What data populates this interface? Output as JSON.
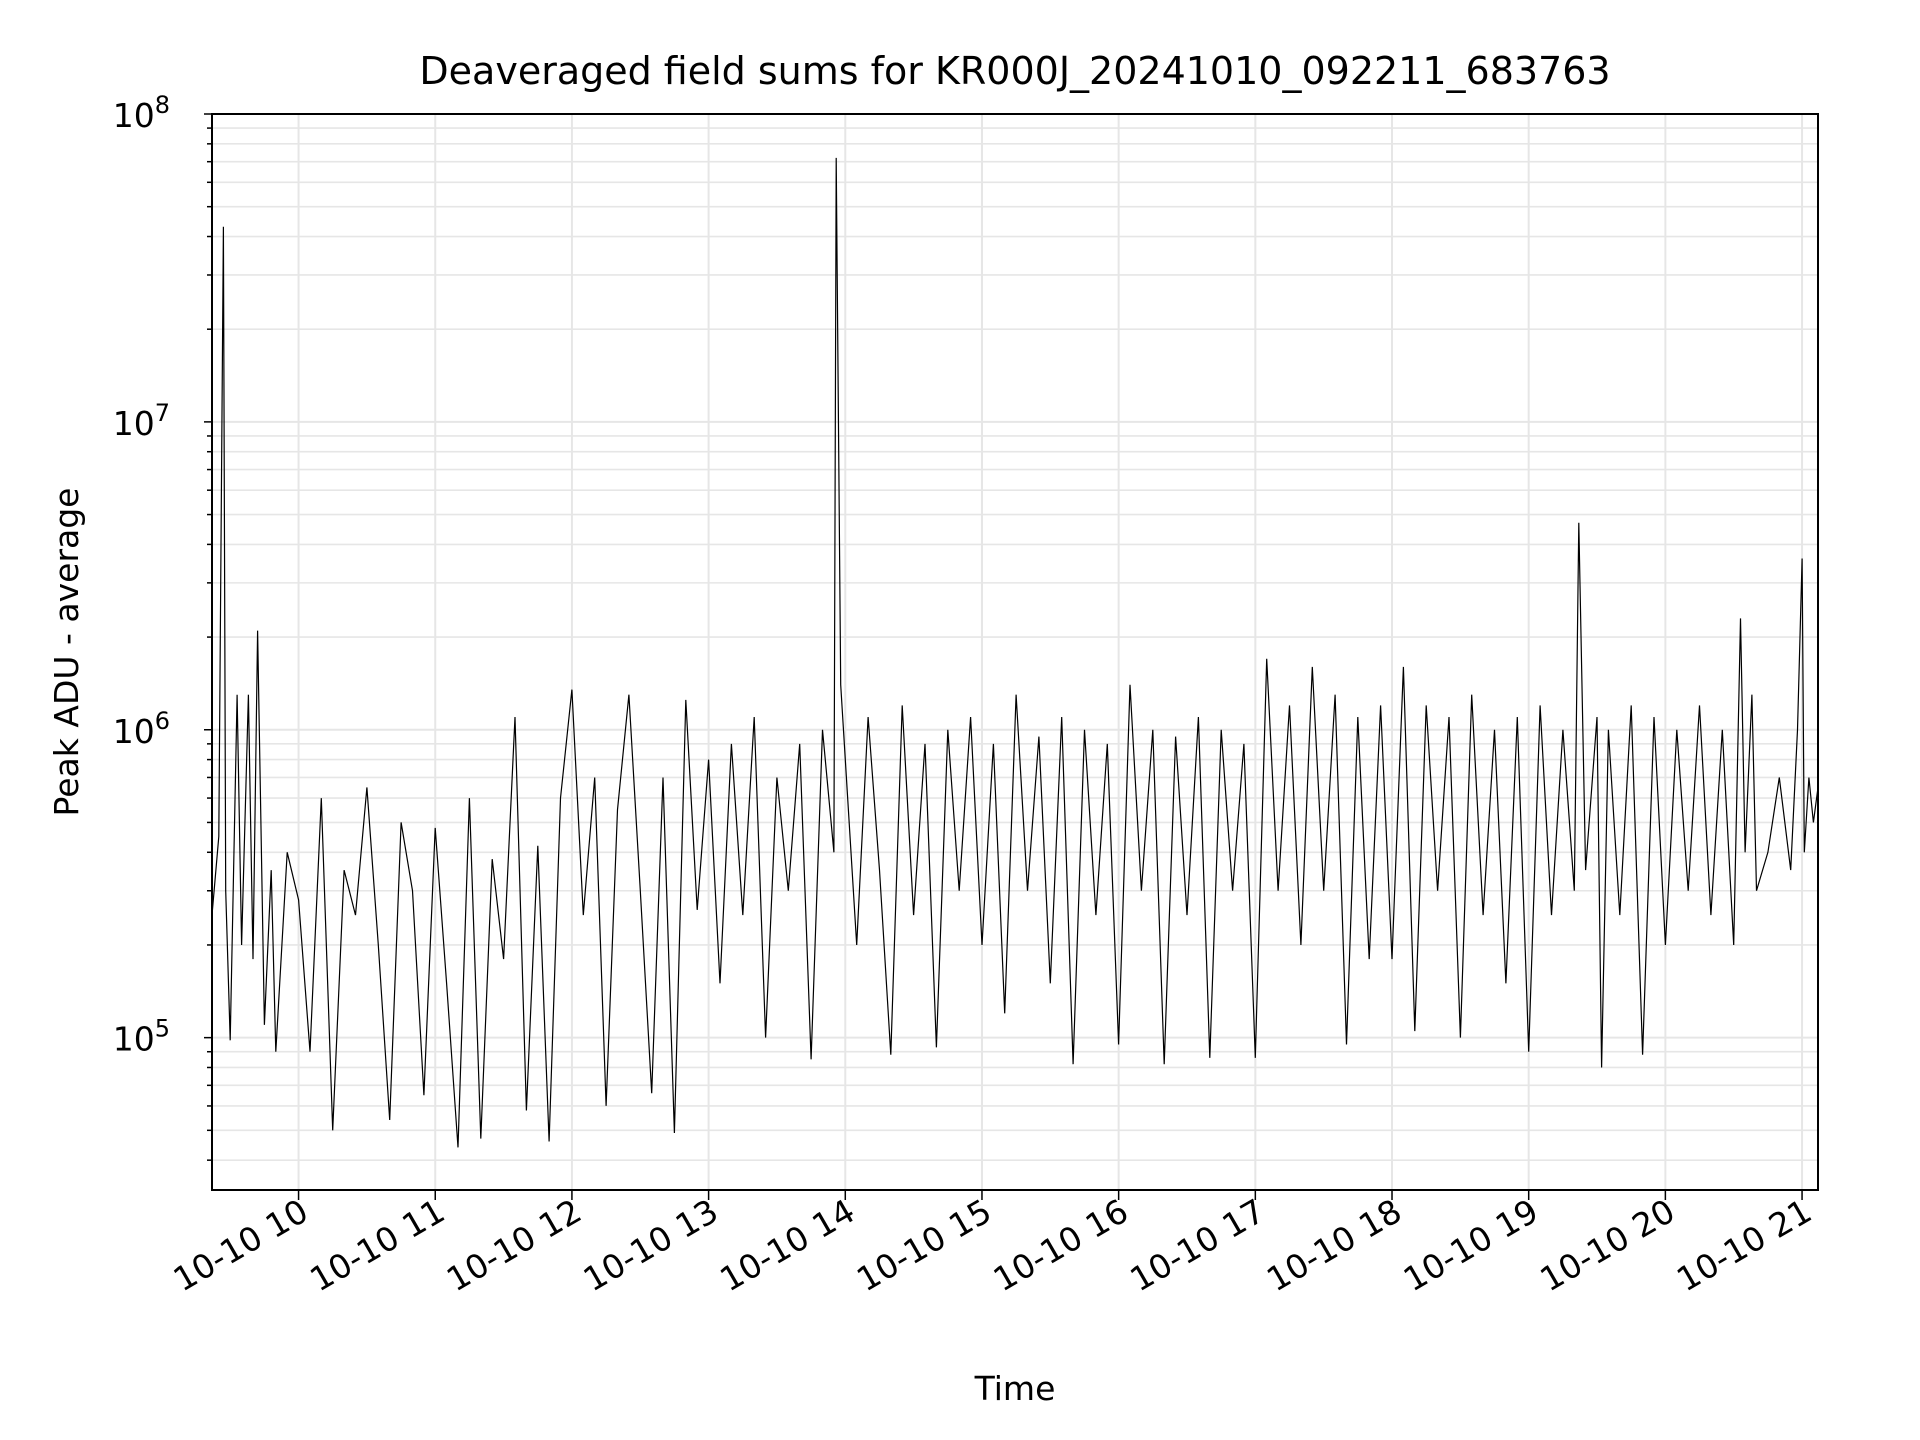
{
  "chart_data": {
    "type": "line",
    "title": "Deaveraged field sums for KR000J_20241010_092211_683763",
    "xlabel": "Time",
    "ylabel": "Peak ADU - average",
    "yscale": "log",
    "ylim": [
      32000,
      100000000
    ],
    "xlim": [
      "2024-10-10 09:22",
      "2024-10-10 21:07"
    ],
    "grid": true,
    "line_color": "#000000",
    "grid_color": "#e6e6e6",
    "x_ticks": [
      {
        "value": "2024-10-10 10:00",
        "label": "10-10 10"
      },
      {
        "value": "2024-10-10 11:00",
        "label": "10-10 11"
      },
      {
        "value": "2024-10-10 12:00",
        "label": "10-10 12"
      },
      {
        "value": "2024-10-10 13:00",
        "label": "10-10 13"
      },
      {
        "value": "2024-10-10 14:00",
        "label": "10-10 14"
      },
      {
        "value": "2024-10-10 15:00",
        "label": "10-10 15"
      },
      {
        "value": "2024-10-10 16:00",
        "label": "10-10 16"
      },
      {
        "value": "2024-10-10 17:00",
        "label": "10-10 17"
      },
      {
        "value": "2024-10-10 18:00",
        "label": "10-10 18"
      },
      {
        "value": "2024-10-10 19:00",
        "label": "10-10 19"
      },
      {
        "value": "2024-10-10 20:00",
        "label": "10-10 20"
      },
      {
        "value": "2024-10-10 21:00",
        "label": "10-10 21"
      }
    ],
    "y_ticks": [
      {
        "value": 100000,
        "base": "10",
        "exp": "5"
      },
      {
        "value": 1000000,
        "base": "10",
        "exp": "6"
      },
      {
        "value": 10000000,
        "base": "10",
        "exp": "7"
      },
      {
        "value": 100000000,
        "base": "10",
        "exp": "8"
      }
    ],
    "series": [
      {
        "points": [
          [
            "2024-10-10 09:22",
            250000
          ],
          [
            "2024-10-10 09:25",
            450000
          ],
          [
            "2024-10-10 09:27",
            43000000
          ],
          [
            "2024-10-10 09:28",
            300000
          ],
          [
            "2024-10-10 09:30",
            98000
          ],
          [
            "2024-10-10 09:33",
            1300000
          ],
          [
            "2024-10-10 09:35",
            200000
          ],
          [
            "2024-10-10 09:38",
            1300000
          ],
          [
            "2024-10-10 09:40",
            180000
          ],
          [
            "2024-10-10 09:42",
            2100000
          ],
          [
            "2024-10-10 09:45",
            110000
          ],
          [
            "2024-10-10 09:48",
            350000
          ],
          [
            "2024-10-10 09:50",
            90000
          ],
          [
            "2024-10-10 09:55",
            400000
          ],
          [
            "2024-10-10 10:00",
            280000
          ],
          [
            "2024-10-10 10:05",
            90000
          ],
          [
            "2024-10-10 10:10",
            600000
          ],
          [
            "2024-10-10 10:15",
            50000
          ],
          [
            "2024-10-10 10:20",
            350000
          ],
          [
            "2024-10-10 10:25",
            250000
          ],
          [
            "2024-10-10 10:30",
            650000
          ],
          [
            "2024-10-10 10:35",
            200000
          ],
          [
            "2024-10-10 10:40",
            54000
          ],
          [
            "2024-10-10 10:45",
            500000
          ],
          [
            "2024-10-10 10:50",
            300000
          ],
          [
            "2024-10-10 10:55",
            65000
          ],
          [
            "2024-10-10 11:00",
            480000
          ],
          [
            "2024-10-10 11:05",
            150000
          ],
          [
            "2024-10-10 11:10",
            44000
          ],
          [
            "2024-10-10 11:15",
            600000
          ],
          [
            "2024-10-10 11:20",
            47000
          ],
          [
            "2024-10-10 11:25",
            380000
          ],
          [
            "2024-10-10 11:30",
            180000
          ],
          [
            "2024-10-10 11:35",
            1100000
          ],
          [
            "2024-10-10 11:40",
            58000
          ],
          [
            "2024-10-10 11:45",
            420000
          ],
          [
            "2024-10-10 11:50",
            46000
          ],
          [
            "2024-10-10 11:55",
            600000
          ],
          [
            "2024-10-10 12:00",
            1350000
          ],
          [
            "2024-10-10 12:05",
            250000
          ],
          [
            "2024-10-10 12:10",
            700000
          ],
          [
            "2024-10-10 12:15",
            60000
          ],
          [
            "2024-10-10 12:20",
            550000
          ],
          [
            "2024-10-10 12:25",
            1300000
          ],
          [
            "2024-10-10 12:30",
            300000
          ],
          [
            "2024-10-10 12:35",
            66000
          ],
          [
            "2024-10-10 12:40",
            700000
          ],
          [
            "2024-10-10 12:45",
            49000
          ],
          [
            "2024-10-10 12:50",
            1250000
          ],
          [
            "2024-10-10 12:55",
            260000
          ],
          [
            "2024-10-10 13:00",
            800000
          ],
          [
            "2024-10-10 13:05",
            150000
          ],
          [
            "2024-10-10 13:10",
            900000
          ],
          [
            "2024-10-10 13:15",
            250000
          ],
          [
            "2024-10-10 13:20",
            1100000
          ],
          [
            "2024-10-10 13:25",
            100000
          ],
          [
            "2024-10-10 13:30",
            700000
          ],
          [
            "2024-10-10 13:35",
            300000
          ],
          [
            "2024-10-10 13:40",
            900000
          ],
          [
            "2024-10-10 13:45",
            85000
          ],
          [
            "2024-10-10 13:50",
            1000000
          ],
          [
            "2024-10-10 13:55",
            400000
          ],
          [
            "2024-10-10 13:56",
            72000000
          ],
          [
            "2024-10-10 13:58",
            1400000
          ],
          [
            "2024-10-10 14:05",
            200000
          ],
          [
            "2024-10-10 14:10",
            1100000
          ],
          [
            "2024-10-10 14:15",
            350000
          ],
          [
            "2024-10-10 14:20",
            88000
          ],
          [
            "2024-10-10 14:25",
            1200000
          ],
          [
            "2024-10-10 14:30",
            250000
          ],
          [
            "2024-10-10 14:35",
            900000
          ],
          [
            "2024-10-10 14:40",
            93000
          ],
          [
            "2024-10-10 14:45",
            1000000
          ],
          [
            "2024-10-10 14:50",
            300000
          ],
          [
            "2024-10-10 14:55",
            1100000
          ],
          [
            "2024-10-10 15:00",
            200000
          ],
          [
            "2024-10-10 15:05",
            900000
          ],
          [
            "2024-10-10 15:10",
            120000
          ],
          [
            "2024-10-10 15:15",
            1300000
          ],
          [
            "2024-10-10 15:20",
            300000
          ],
          [
            "2024-10-10 15:25",
            950000
          ],
          [
            "2024-10-10 15:30",
            150000
          ],
          [
            "2024-10-10 15:35",
            1100000
          ],
          [
            "2024-10-10 15:40",
            82000
          ],
          [
            "2024-10-10 15:45",
            1000000
          ],
          [
            "2024-10-10 15:50",
            250000
          ],
          [
            "2024-10-10 15:55",
            900000
          ],
          [
            "2024-10-10 16:00",
            95000
          ],
          [
            "2024-10-10 16:05",
            1400000
          ],
          [
            "2024-10-10 16:10",
            300000
          ],
          [
            "2024-10-10 16:15",
            1000000
          ],
          [
            "2024-10-10 16:20",
            82000
          ],
          [
            "2024-10-10 16:25",
            950000
          ],
          [
            "2024-10-10 16:30",
            250000
          ],
          [
            "2024-10-10 16:35",
            1100000
          ],
          [
            "2024-10-10 16:40",
            86000
          ],
          [
            "2024-10-10 16:45",
            1000000
          ],
          [
            "2024-10-10 16:50",
            300000
          ],
          [
            "2024-10-10 16:55",
            900000
          ],
          [
            "2024-10-10 17:00",
            86000
          ],
          [
            "2024-10-10 17:05",
            1700000
          ],
          [
            "2024-10-10 17:10",
            300000
          ],
          [
            "2024-10-10 17:15",
            1200000
          ],
          [
            "2024-10-10 17:20",
            200000
          ],
          [
            "2024-10-10 17:25",
            1600000
          ],
          [
            "2024-10-10 17:30",
            300000
          ],
          [
            "2024-10-10 17:35",
            1300000
          ],
          [
            "2024-10-10 17:40",
            95000
          ],
          [
            "2024-10-10 17:45",
            1100000
          ],
          [
            "2024-10-10 17:50",
            180000
          ],
          [
            "2024-10-10 17:55",
            1200000
          ],
          [
            "2024-10-10 18:00",
            180000
          ],
          [
            "2024-10-10 18:05",
            1600000
          ],
          [
            "2024-10-10 18:10",
            105000
          ],
          [
            "2024-10-10 18:15",
            1200000
          ],
          [
            "2024-10-10 18:20",
            300000
          ],
          [
            "2024-10-10 18:25",
            1100000
          ],
          [
            "2024-10-10 18:30",
            100000
          ],
          [
            "2024-10-10 18:35",
            1300000
          ],
          [
            "2024-10-10 18:40",
            250000
          ],
          [
            "2024-10-10 18:45",
            1000000
          ],
          [
            "2024-10-10 18:50",
            150000
          ],
          [
            "2024-10-10 18:55",
            1100000
          ],
          [
            "2024-10-10 19:00",
            90000
          ],
          [
            "2024-10-10 19:05",
            1200000
          ],
          [
            "2024-10-10 19:10",
            250000
          ],
          [
            "2024-10-10 19:15",
            1000000
          ],
          [
            "2024-10-10 19:20",
            300000
          ],
          [
            "2024-10-10 19:22",
            4700000
          ],
          [
            "2024-10-10 19:25",
            350000
          ],
          [
            "2024-10-10 19:30",
            1100000
          ],
          [
            "2024-10-10 19:32",
            80000
          ],
          [
            "2024-10-10 19:35",
            1000000
          ],
          [
            "2024-10-10 19:40",
            250000
          ],
          [
            "2024-10-10 19:45",
            1200000
          ],
          [
            "2024-10-10 19:50",
            88000
          ],
          [
            "2024-10-10 19:55",
            1100000
          ],
          [
            "2024-10-10 20:00",
            200000
          ],
          [
            "2024-10-10 20:05",
            1000000
          ],
          [
            "2024-10-10 20:10",
            300000
          ],
          [
            "2024-10-10 20:15",
            1200000
          ],
          [
            "2024-10-10 20:20",
            250000
          ],
          [
            "2024-10-10 20:25",
            1000000
          ],
          [
            "2024-10-10 20:30",
            200000
          ],
          [
            "2024-10-10 20:33",
            2300000
          ],
          [
            "2024-10-10 20:35",
            400000
          ],
          [
            "2024-10-10 20:38",
            1300000
          ],
          [
            "2024-10-10 20:40",
            300000
          ],
          [
            "2024-10-10 20:45",
            400000
          ],
          [
            "2024-10-10 20:50",
            700000
          ],
          [
            "2024-10-10 20:55",
            350000
          ],
          [
            "2024-10-10 20:58",
            1000000
          ],
          [
            "2024-10-10 21:00",
            3600000
          ],
          [
            "2024-10-10 21:01",
            400000
          ],
          [
            "2024-10-10 21:03",
            700000
          ],
          [
            "2024-10-10 21:05",
            500000
          ],
          [
            "2024-10-10 21:07",
            650000
          ]
        ]
      }
    ]
  }
}
